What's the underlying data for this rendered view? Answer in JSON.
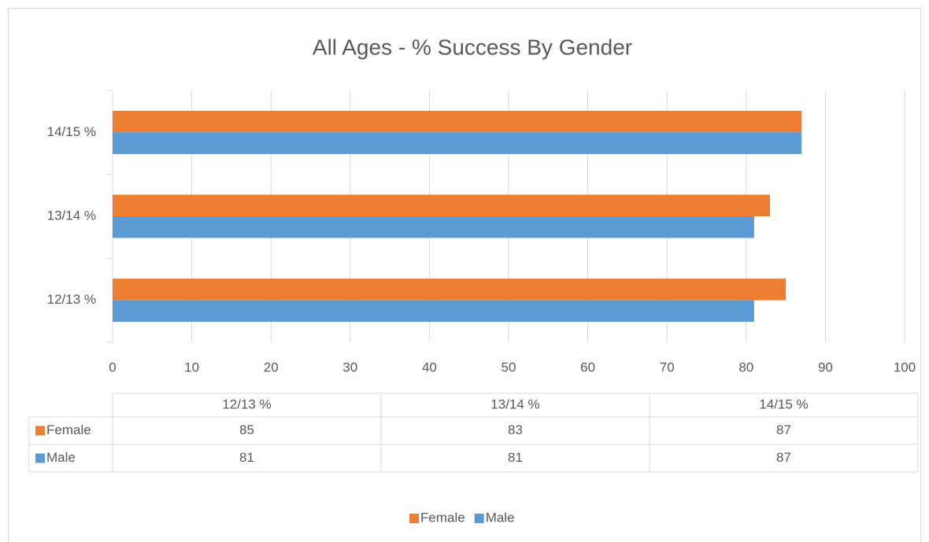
{
  "chart_data": {
    "type": "bar",
    "orientation": "horizontal",
    "title": "All Ages - % Success By Gender",
    "categories": [
      "12/13 %",
      "13/14 %",
      "14/15 %"
    ],
    "series": [
      {
        "name": "Female",
        "color": "#ed7d31",
        "values": [
          85,
          83,
          87
        ]
      },
      {
        "name": "Male",
        "color": "#5b9bd5",
        "values": [
          81,
          81,
          87
        ]
      }
    ],
    "xlim": [
      0,
      100
    ],
    "xticks": [
      0,
      10,
      20,
      30,
      40,
      50,
      60,
      70,
      80,
      90,
      100
    ],
    "grid": true,
    "legend": "bottom",
    "data_table": true
  }
}
